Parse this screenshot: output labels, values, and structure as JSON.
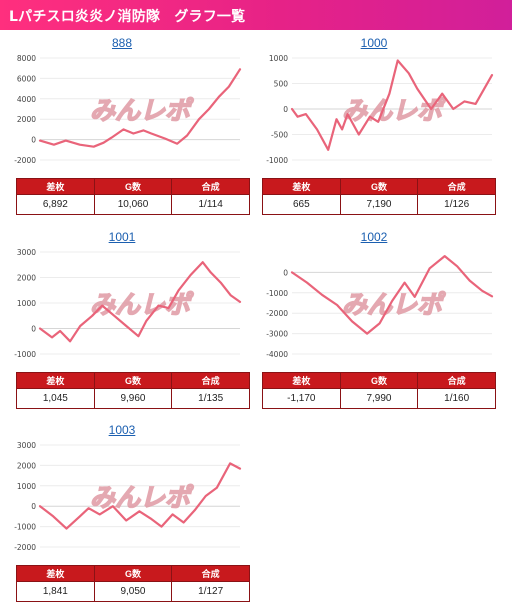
{
  "header": {
    "title": "Lパチスロ炎炎ノ消防隊　グラフ一覧"
  },
  "watermark": {
    "text": "みんレポ",
    "color": "#e09aa4"
  },
  "colors": {
    "header": "#e62287",
    "line": "#e9647a",
    "table_header": "#c8191d",
    "title_link": "#1b5fb0"
  },
  "table_headers": [
    "差枚",
    "G数",
    "合成"
  ],
  "panels": [
    {
      "title": "888",
      "table": {
        "diff": "6,892",
        "games": "10,060",
        "ratio": "1/114"
      },
      "chart_data": {
        "type": "line",
        "yticks": [
          8000,
          6000,
          4000,
          2000,
          0,
          -2000
        ],
        "ylim": [
          -2000,
          8000
        ],
        "xlim": [
          0,
          10060
        ],
        "series": [
          {
            "x": [
              0,
              700,
              1300,
              2000,
              2700,
              3200,
              3600,
              4200,
              4700,
              5200,
              5600,
              6300,
              6900,
              7400,
              8000,
              8500,
              9000,
              9500,
              10060
            ],
            "y": [
              -100,
              -500,
              -100,
              -500,
              -700,
              -300,
              200,
              1000,
              600,
              900,
              600,
              100,
              -400,
              400,
              2000,
              3000,
              4200,
              5200,
              6892
            ]
          }
        ]
      }
    },
    {
      "title": "1000",
      "table": {
        "diff": "665",
        "games": "7,190",
        "ratio": "1/126"
      },
      "chart_data": {
        "type": "line",
        "yticks": [
          1000,
          500,
          0,
          -500,
          -1000
        ],
        "ylim": [
          -1000,
          1000
        ],
        "xlim": [
          0,
          7190
        ],
        "series": [
          {
            "x": [
              0,
              200,
              500,
              900,
              1300,
              1600,
              1800,
              2000,
              2400,
              2800,
              3100,
              3500,
              3800,
              4200,
              4500,
              5000,
              5400,
              5800,
              6200,
              6600,
              7190
            ],
            "y": [
              0,
              -150,
              -100,
              -400,
              -800,
              -200,
              -400,
              -100,
              -500,
              -150,
              -250,
              300,
              950,
              700,
              400,
              0,
              300,
              0,
              150,
              100,
              665
            ]
          }
        ]
      }
    },
    {
      "title": "1001",
      "table": {
        "diff": "1,045",
        "games": "9,960",
        "ratio": "1/135"
      },
      "chart_data": {
        "type": "line",
        "yticks": [
          3000,
          2000,
          1000,
          0,
          -1000
        ],
        "ylim": [
          -1000,
          3000
        ],
        "xlim": [
          0,
          9960
        ],
        "series": [
          {
            "x": [
              0,
              600,
              1000,
              1500,
              2000,
              2600,
              3100,
              3700,
              4300,
              4900,
              5300,
              5900,
              6400,
              6900,
              7500,
              8100,
              8500,
              9000,
              9500,
              9960
            ],
            "y": [
              0,
              -350,
              -100,
              -500,
              100,
              500,
              900,
              500,
              100,
              -300,
              300,
              900,
              800,
              1500,
              2100,
              2600,
              2200,
              1800,
              1300,
              1045
            ]
          }
        ]
      }
    },
    {
      "title": "1002",
      "table": {
        "diff": "-1,170",
        "games": "7,990",
        "ratio": "1/160"
      },
      "chart_data": {
        "type": "line",
        "yticks": [
          0,
          -1000,
          -2000,
          -3000,
          -4000
        ],
        "ylim": [
          -4000,
          1000
        ],
        "xlim": [
          0,
          7990
        ],
        "series": [
          {
            "x": [
              0,
              600,
              1200,
              1800,
              2400,
              3000,
              3500,
              4000,
              4500,
              4900,
              5500,
              6100,
              6600,
              7100,
              7600,
              7990
            ],
            "y": [
              0,
              -500,
              -1100,
              -1600,
              -2400,
              -3000,
              -2500,
              -1400,
              -500,
              -1200,
              200,
              800,
              300,
              -400,
              -900,
              -1170
            ]
          }
        ]
      }
    },
    {
      "title": "1003",
      "table": {
        "diff": "1,841",
        "games": "9,050",
        "ratio": "1/127"
      },
      "chart_data": {
        "type": "line",
        "yticks": [
          3000,
          2000,
          1000,
          0,
          -1000,
          -2000
        ],
        "ylim": [
          -2000,
          3000
        ],
        "xlim": [
          0,
          9050
        ],
        "series": [
          {
            "x": [
              0,
              600,
              1200,
              1800,
              2200,
              2700,
              3300,
              3900,
              4500,
              5000,
              5500,
              6000,
              6500,
              7000,
              7500,
              8000,
              8600,
              9050
            ],
            "y": [
              0,
              -500,
              -1100,
              -500,
              -100,
              -400,
              0,
              -700,
              -250,
              -600,
              -1000,
              -400,
              -800,
              -200,
              500,
              900,
              2100,
              1841
            ]
          }
        ]
      }
    }
  ]
}
